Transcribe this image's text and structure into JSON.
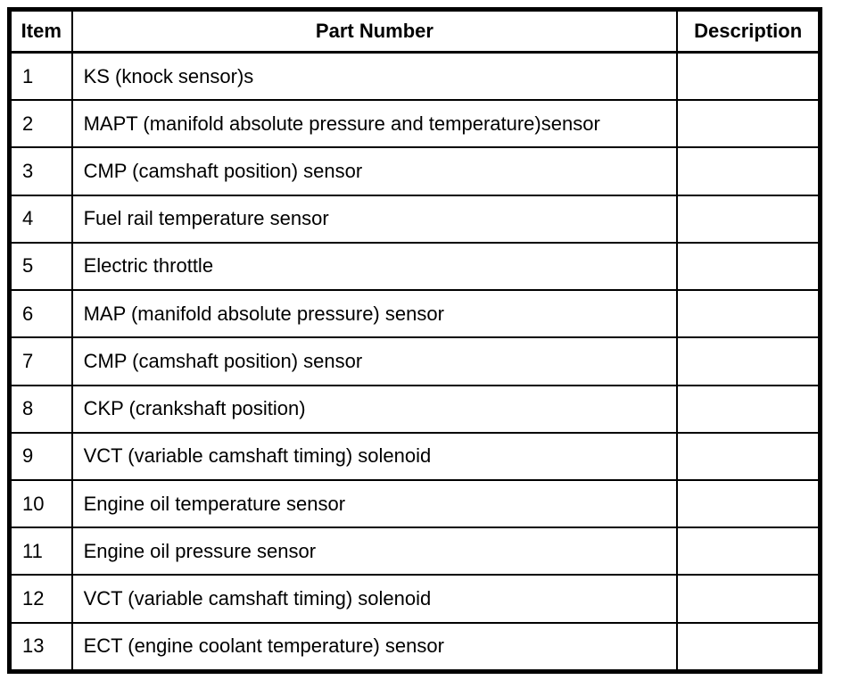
{
  "colors": {
    "border": "#000000",
    "background": "#ffffff",
    "text": "#000000"
  },
  "table": {
    "headers": {
      "item": "Item",
      "part_number": "Part Number",
      "description": "Description"
    },
    "rows": [
      {
        "item": "1",
        "part_number": "KS (knock sensor)s",
        "description": ""
      },
      {
        "item": "2",
        "part_number": "MAPT (manifold absolute pressure and temperature)sensor",
        "description": ""
      },
      {
        "item": "3",
        "part_number": "CMP (camshaft position) sensor",
        "description": ""
      },
      {
        "item": "4",
        "part_number": "Fuel rail temperature sensor",
        "description": ""
      },
      {
        "item": "5",
        "part_number": "Electric throttle",
        "description": ""
      },
      {
        "item": "6",
        "part_number": "MAP (manifold absolute pressure) sensor",
        "description": ""
      },
      {
        "item": "7",
        "part_number": "CMP (camshaft position) sensor",
        "description": ""
      },
      {
        "item": "8",
        "part_number": "CKP (crankshaft position)",
        "description": ""
      },
      {
        "item": "9",
        "part_number": "VCT (variable camshaft timing) solenoid",
        "description": ""
      },
      {
        "item": "10",
        "part_number": "Engine oil temperature sensor",
        "description": ""
      },
      {
        "item": "11",
        "part_number": "Engine oil pressure sensor",
        "description": ""
      },
      {
        "item": "12",
        "part_number": "VCT (variable camshaft timing) solenoid",
        "description": ""
      },
      {
        "item": "13",
        "part_number": "ECT (engine coolant temperature) sensor",
        "description": ""
      }
    ]
  }
}
